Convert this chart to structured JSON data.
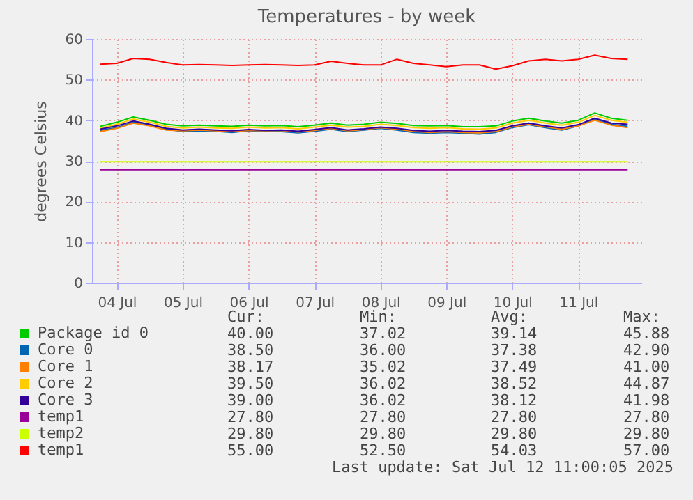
{
  "chart_data": {
    "type": "line",
    "title": "Temperatures - by week",
    "ylabel": "degrees Celsius",
    "x": [
      "2025-07-04T06:00",
      "2025-07-04T12:00",
      "2025-07-04T18:00",
      "2025-07-05T00:00",
      "2025-07-05T06:00",
      "2025-07-05T12:00",
      "2025-07-05T18:00",
      "2025-07-06T00:00",
      "2025-07-06T06:00",
      "2025-07-06T12:00",
      "2025-07-06T18:00",
      "2025-07-07T00:00",
      "2025-07-07T06:00",
      "2025-07-07T12:00",
      "2025-07-07T18:00",
      "2025-07-08T00:00",
      "2025-07-08T06:00",
      "2025-07-08T12:00",
      "2025-07-08T18:00",
      "2025-07-09T00:00",
      "2025-07-09T06:00",
      "2025-07-09T12:00",
      "2025-07-09T18:00",
      "2025-07-10T00:00",
      "2025-07-10T06:00",
      "2025-07-10T12:00",
      "2025-07-10T18:00",
      "2025-07-11T00:00",
      "2025-07-11T06:00",
      "2025-07-11T12:00",
      "2025-07-11T18:00",
      "2025-07-12T00:00",
      "2025-07-12T06:00"
    ],
    "series": [
      {
        "name": "Package id 0",
        "color": "#00cc00",
        "values": [
          38.5,
          39.5,
          40.8,
          40.0,
          39.0,
          38.6,
          38.8,
          38.6,
          38.5,
          38.8,
          38.6,
          38.7,
          38.4,
          38.8,
          39.3,
          38.8,
          39.0,
          39.5,
          39.2,
          38.7,
          38.6,
          38.7,
          38.4,
          38.4,
          38.6,
          39.8,
          40.5,
          39.8,
          39.3,
          40.0,
          41.8,
          40.5,
          40.0
        ]
      },
      {
        "name": "Core 0",
        "color": "#0066b3",
        "values": [
          37.5,
          38.2,
          39.5,
          38.8,
          37.8,
          37.2,
          37.4,
          37.3,
          37.0,
          37.4,
          37.2,
          37.2,
          36.9,
          37.3,
          37.8,
          37.2,
          37.6,
          38.0,
          37.6,
          37.0,
          36.8,
          37.0,
          36.8,
          36.6,
          37.0,
          38.2,
          38.9,
          38.2,
          37.6,
          38.6,
          40.2,
          39.0,
          38.5
        ]
      },
      {
        "name": "Core 1",
        "color": "#ff8000",
        "values": [
          37.2,
          38.0,
          39.3,
          38.6,
          37.6,
          37.4,
          37.6,
          37.4,
          37.2,
          37.5,
          37.4,
          37.5,
          37.1,
          37.5,
          38.0,
          37.4,
          37.7,
          38.2,
          37.8,
          37.3,
          37.0,
          37.2,
          37.0,
          36.9,
          37.2,
          38.4,
          39.0,
          38.4,
          37.8,
          38.6,
          40.0,
          38.8,
          38.2
        ]
      },
      {
        "name": "Core 2",
        "color": "#ffcc00",
        "values": [
          38.0,
          39.0,
          40.3,
          39.5,
          38.5,
          38.1,
          38.3,
          38.1,
          38.0,
          38.3,
          38.1,
          38.2,
          37.9,
          38.3,
          38.8,
          38.3,
          38.5,
          39.0,
          38.7,
          38.2,
          38.0,
          38.2,
          37.9,
          37.8,
          38.1,
          39.3,
          40.0,
          39.3,
          38.8,
          39.5,
          41.2,
          40.0,
          39.5
        ]
      },
      {
        "name": "Core 3",
        "color": "#330099",
        "values": [
          37.8,
          38.6,
          39.8,
          39.0,
          38.0,
          37.6,
          37.8,
          37.6,
          37.4,
          37.7,
          37.5,
          37.6,
          37.3,
          37.7,
          38.2,
          37.6,
          37.9,
          38.3,
          38.0,
          37.5,
          37.3,
          37.5,
          37.3,
          37.2,
          37.5,
          38.6,
          39.3,
          38.6,
          38.1,
          38.9,
          40.5,
          39.3,
          39.0
        ]
      },
      {
        "name": "temp1",
        "color": "#990099",
        "values": [
          27.8,
          27.8,
          27.8,
          27.8,
          27.8,
          27.8,
          27.8,
          27.8,
          27.8,
          27.8,
          27.8,
          27.8,
          27.8,
          27.8,
          27.8,
          27.8,
          27.8,
          27.8,
          27.8,
          27.8,
          27.8,
          27.8,
          27.8,
          27.8,
          27.8,
          27.8,
          27.8,
          27.8,
          27.8,
          27.8,
          27.8,
          27.8,
          27.8
        ]
      },
      {
        "name": "temp2",
        "color": "#ccff00",
        "values": [
          29.8,
          29.8,
          29.8,
          29.8,
          29.8,
          29.8,
          29.8,
          29.8,
          29.8,
          29.8,
          29.8,
          29.8,
          29.8,
          29.8,
          29.8,
          29.8,
          29.8,
          29.8,
          29.8,
          29.8,
          29.8,
          29.8,
          29.8,
          29.8,
          29.8,
          29.8,
          29.8,
          29.8,
          29.8,
          29.8,
          29.8,
          29.8,
          29.8
        ]
      },
      {
        "name": "temp1",
        "color": "#ff0000",
        "values": [
          53.8,
          54.0,
          55.2,
          55.0,
          54.2,
          53.6,
          53.7,
          53.6,
          53.5,
          53.6,
          53.7,
          53.6,
          53.5,
          53.6,
          54.5,
          54.0,
          53.6,
          53.6,
          55.0,
          54.0,
          53.6,
          53.2,
          53.6,
          53.6,
          52.6,
          53.4,
          54.6,
          55.0,
          54.6,
          55.0,
          56.0,
          55.2,
          55.0
        ]
      }
    ],
    "xlim": [
      "2025-07-04T03:00",
      "2025-07-12T11:00"
    ],
    "xticks": [
      {
        "value": "2025-07-04T12:00",
        "label": "04 Jul"
      },
      {
        "value": "2025-07-05T12:00",
        "label": "05 Jul"
      },
      {
        "value": "2025-07-06T12:00",
        "label": "06 Jul"
      },
      {
        "value": "2025-07-07T12:00",
        "label": "07 Jul"
      },
      {
        "value": "2025-07-08T12:00",
        "label": "08 Jul"
      },
      {
        "value": "2025-07-09T12:00",
        "label": "09 Jul"
      },
      {
        "value": "2025-07-10T12:00",
        "label": "10 Jul"
      },
      {
        "value": "2025-07-11T12:00",
        "label": "11 Jul"
      }
    ],
    "ylim": [
      0,
      60
    ],
    "yticks": [
      0,
      10,
      20,
      30,
      40,
      50,
      60
    ],
    "grid": true,
    "legend": "bottom",
    "marker": "none",
    "line_style": "solid",
    "annotations": [
      "Cur:",
      "Min:",
      "Avg:",
      "Max:",
      "40.00",
      "37.02",
      "39.14",
      "45.88",
      "38.50",
      "36.00",
      "37.38",
      "42.90",
      "38.17",
      "35.02",
      "37.49",
      "41.00",
      "39.50",
      "36.02",
      "38.52",
      "44.87",
      "39.00",
      "36.02",
      "38.12",
      "41.98",
      "27.80",
      "27.80",
      "27.80",
      "27.80",
      "29.80",
      "29.80",
      "29.80",
      "29.80",
      "55.00",
      "52.50",
      "54.03",
      "57.00",
      "Last update: Sat Jul 12 11:00:05 2025"
    ]
  }
}
